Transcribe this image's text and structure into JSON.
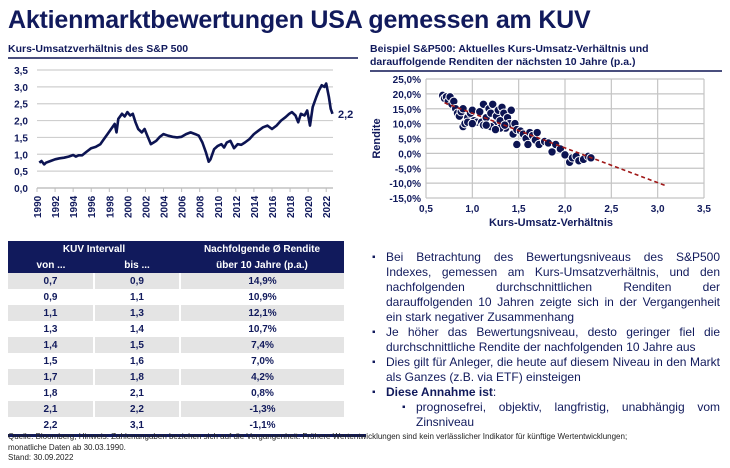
{
  "header": {
    "title": "Aktienmarktbewertungen USA gemessen am KUV",
    "left_subtitle": "Kurs-Umsatzverhältnis des S&P 500",
    "right_subtitle_line1": "Beispiel S&P500: Aktuelles Kurs-Umsatz-Verhältnis und",
    "right_subtitle_line2": "darauffolgende Renditen der nächsten 10 Jahre (p.a.)"
  },
  "chart_data": [
    {
      "type": "line",
      "title": "Kurs-Umsatzverhältnis des S&P 500",
      "xlabel": "",
      "ylabel": "",
      "xlim": [
        1990,
        2022.75
      ],
      "ylim": [
        0,
        3.5
      ],
      "y_ticks": [
        "0,0",
        "0,5",
        "1,0",
        "1,5",
        "2,0",
        "2,5",
        "3,0",
        "3,5"
      ],
      "x_ticks": [
        "1990",
        "1992",
        "1994",
        "1996",
        "1998",
        "2000",
        "2002",
        "2004",
        "2006",
        "2008",
        "2010",
        "2012",
        "2014",
        "2016",
        "2018",
        "2020",
        "2022"
      ],
      "grid": "horizontal",
      "end_label": "2,2",
      "series": [
        {
          "name": "KUV S&P 500",
          "color": "#0c1452",
          "x": [
            1990.25,
            1990.5,
            1990.8,
            1991.0,
            1991.5,
            1992.0,
            1992.5,
            1993.0,
            1993.5,
            1994.0,
            1994.3,
            1994.6,
            1995.0,
            1995.5,
            1996.0,
            1996.5,
            1997.0,
            1997.4,
            1997.8,
            1998.2,
            1998.6,
            1998.8,
            1999.0,
            1999.4,
            1999.7,
            2000.0,
            2000.3,
            2000.6,
            2000.9,
            2001.2,
            2001.6,
            2001.9,
            2002.2,
            2002.6,
            2002.9,
            2003.2,
            2003.6,
            2004.0,
            2004.5,
            2005.0,
            2005.5,
            2006.0,
            2006.5,
            2007.0,
            2007.5,
            2007.9,
            2008.3,
            2008.7,
            2009.0,
            2009.2,
            2009.6,
            2010.0,
            2010.4,
            2010.7,
            2011.0,
            2011.4,
            2011.8,
            2012.2,
            2012.6,
            2013.0,
            2013.5,
            2014.0,
            2014.5,
            2015.0,
            2015.5,
            2016.0,
            2016.5,
            2017.0,
            2017.5,
            2017.9,
            2018.2,
            2018.6,
            2018.9,
            2019.2,
            2019.6,
            2019.9,
            2020.2,
            2020.5,
            2020.9,
            2021.2,
            2021.5,
            2021.8,
            2022.0,
            2022.3,
            2022.5,
            2022.7
          ],
          "y": [
            0.75,
            0.8,
            0.7,
            0.75,
            0.8,
            0.85,
            0.88,
            0.9,
            0.93,
            0.98,
            0.93,
            0.97,
            0.97,
            1.08,
            1.18,
            1.22,
            1.3,
            1.45,
            1.6,
            1.75,
            1.9,
            1.65,
            2.05,
            2.2,
            2.12,
            2.25,
            2.15,
            2.2,
            1.95,
            1.75,
            1.65,
            1.75,
            1.55,
            1.3,
            1.35,
            1.4,
            1.52,
            1.6,
            1.55,
            1.52,
            1.5,
            1.52,
            1.6,
            1.65,
            1.6,
            1.55,
            1.35,
            1.05,
            0.78,
            0.85,
            1.15,
            1.25,
            1.3,
            1.2,
            1.35,
            1.4,
            1.18,
            1.3,
            1.28,
            1.35,
            1.45,
            1.6,
            1.7,
            1.8,
            1.85,
            1.75,
            1.85,
            2.0,
            2.1,
            2.2,
            2.25,
            2.15,
            1.95,
            2.2,
            2.15,
            2.3,
            1.85,
            2.4,
            2.7,
            2.9,
            3.05,
            3.0,
            3.1,
            2.7,
            2.35,
            2.2
          ]
        }
      ]
    },
    {
      "type": "scatter",
      "title": "Beispiel S&P500: Aktuelles Kurs-Umsatz-Verhältnis und darauffolgende Renditen der nächsten 10 Jahre (p.a.)",
      "xlabel": "Kurs-Umsatz-Verhältnis",
      "ylabel": "Rendite",
      "xlim": [
        0.5,
        3.5
      ],
      "ylim": [
        -15,
        25
      ],
      "x_ticks": [
        "0,5",
        "1,0",
        "1,5",
        "2,0",
        "2,5",
        "3,0",
        "3,5"
      ],
      "y_ticks": [
        "-15,0%",
        "-10,0%",
        "-5,0%",
        "0,0%",
        "5,0%",
        "10,0%",
        "15,0%",
        "20,0%",
        "25,0%"
      ],
      "grid": "both",
      "points_color": "#0c1452",
      "trendline": {
        "color": "#a01818",
        "style": "dashed",
        "x": [
          0.7,
          3.1
        ],
        "y": [
          17.0,
          -11.0
        ]
      },
      "points": [
        [
          0.68,
          19.5
        ],
        [
          0.7,
          18.5
        ],
        [
          0.72,
          19.0
        ],
        [
          0.74,
          17.5
        ],
        [
          0.76,
          19.0
        ],
        [
          0.78,
          16.5
        ],
        [
          0.8,
          17.5
        ],
        [
          0.82,
          15.0
        ],
        [
          0.84,
          13.5
        ],
        [
          0.86,
          12.5
        ],
        [
          0.88,
          14.0
        ],
        [
          0.9,
          15.0
        ],
        [
          0.9,
          9.0
        ],
        [
          0.92,
          10.0
        ],
        [
          0.95,
          12.0
        ],
        [
          0.98,
          13.5
        ],
        [
          1.0,
          14.5
        ],
        [
          1.02,
          11.0
        ],
        [
          1.05,
          10.5
        ],
        [
          1.08,
          14.0
        ],
        [
          1.1,
          10.5
        ],
        [
          1.12,
          16.5
        ],
        [
          1.15,
          12.0
        ],
        [
          1.18,
          15.0
        ],
        [
          1.2,
          13.5
        ],
        [
          1.22,
          16.5
        ],
        [
          1.24,
          9.5
        ],
        [
          1.26,
          12.5
        ],
        [
          1.28,
          14.5
        ],
        [
          1.3,
          11.0
        ],
        [
          1.32,
          15.5
        ],
        [
          1.34,
          13.5
        ],
        [
          1.36,
          8.5
        ],
        [
          1.38,
          12.0
        ],
        [
          1.4,
          10.0
        ],
        [
          1.42,
          14.5
        ],
        [
          1.44,
          6.5
        ],
        [
          1.46,
          10.0
        ],
        [
          1.48,
          8.0
        ],
        [
          1.48,
          3.0
        ],
        [
          1.52,
          7.5
        ],
        [
          1.55,
          6.5
        ],
        [
          1.58,
          5.0
        ],
        [
          1.6,
          3.0
        ],
        [
          1.62,
          7.0
        ],
        [
          1.65,
          6.0
        ],
        [
          1.68,
          4.5
        ],
        [
          1.7,
          7.0
        ],
        [
          1.72,
          3.0
        ],
        [
          1.78,
          4.0
        ],
        [
          1.82,
          3.5
        ],
        [
          1.86,
          0.5
        ],
        [
          1.9,
          3.0
        ],
        [
          1.95,
          1.5
        ],
        [
          2.0,
          -0.5
        ],
        [
          2.05,
          -3.0
        ],
        [
          2.08,
          -1.5
        ],
        [
          2.12,
          -1.0
        ],
        [
          2.15,
          -2.5
        ],
        [
          2.2,
          -2.0
        ],
        [
          2.25,
          -1.0
        ],
        [
          2.28,
          -1.5
        ],
        [
          1.12,
          9.5
        ],
        [
          1.2,
          9.0
        ],
        [
          1.3,
          8.5
        ],
        [
          1.25,
          8.0
        ],
        [
          1.35,
          9.5
        ],
        [
          0.95,
          10.5
        ],
        [
          1.0,
          10.0
        ],
        [
          1.15,
          9.5
        ]
      ]
    }
  ],
  "table": {
    "group_header": "KUV Intervall",
    "return_header_line1": "Nachfolgende Ø Rendite",
    "col_from": "von ...",
    "col_to": "bis ...",
    "return_header_line2": "über 10 Jahre (p.a.)",
    "rows": [
      {
        "from": "0,7",
        "to": "0,9",
        "ret": "14,9%"
      },
      {
        "from": "0,9",
        "to": "1,1",
        "ret": "10,9%"
      },
      {
        "from": "1,1",
        "to": "1,3",
        "ret": "12,1%"
      },
      {
        "from": "1,3",
        "to": "1,4",
        "ret": "10,7%"
      },
      {
        "from": "1,4",
        "to": "1,5",
        "ret": "7,4%"
      },
      {
        "from": "1,5",
        "to": "1,6",
        "ret": "7,0%"
      },
      {
        "from": "1,7",
        "to": "1,8",
        "ret": "4,2%"
      },
      {
        "from": "1,8",
        "to": "2,1",
        "ret": "0,8%"
      },
      {
        "from": "2,1",
        "to": "2,2",
        "ret": "-1,3%"
      },
      {
        "from": "2,2",
        "to": "3,1",
        "ret": "-1,1%"
      }
    ]
  },
  "bullets": {
    "items": [
      "Bei Betrachtung des Bewertungsniveaus des S&P500 Indexes, gemessen am Kurs-Umsatzverhältnis, und den nachfolgenden durchschnittlichen Renditen der darauffolgenden 10 Jahren zeigte sich in der Vergangenheit ein stark negativer Zusammenhang",
      "Je höher das Bewertungsniveau, desto geringer fiel die durchschnittliche Rendite der nachfolgenden 10 Jahre aus",
      "Dies gilt für Anleger, die heute auf diesem Niveau in den Markt als Ganzes (z.B. via ETF) einsteigen"
    ],
    "bold_item": "Diese Annahme ist",
    "bold_item_suffix": ":",
    "sub_item": "prognosefrei, objektiv, langfristig, unabhängig vom Zinsniveau"
  },
  "footer": {
    "line1": "Quelle: Bloomberg; Hinweis: Zahlenangaben beziehen sich auf die Vergangenheit. Frühere Wertentwicklungen sind kein verlässlicher Indikator für künftige Wertentwicklungen;",
    "line2": "monatliche Daten ab 30.03.1990.",
    "line3": "Stand:  30.09.2022"
  }
}
